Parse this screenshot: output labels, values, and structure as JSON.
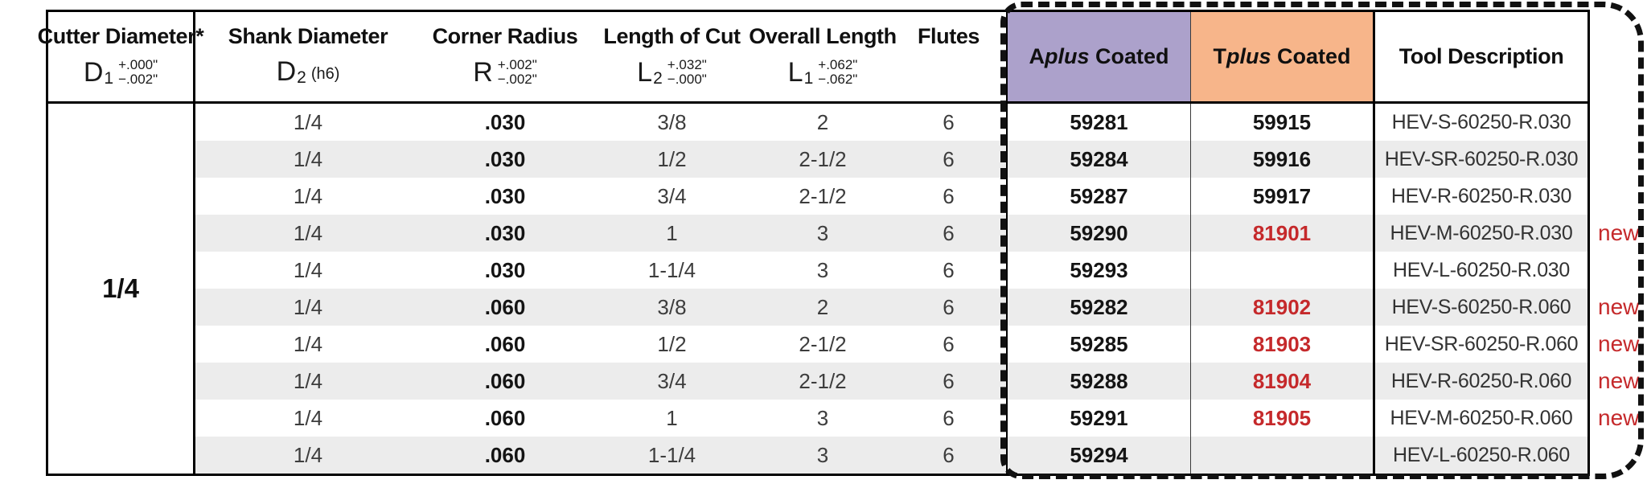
{
  "colors": {
    "aplus_bg": "#aca1cb",
    "tplus_bg": "#f7b58a",
    "new_color": "#c5292b",
    "row_stripe": "#ececec"
  },
  "header": {
    "cutter": {
      "label": "Cutter Diameter*",
      "symbol": "D",
      "subscript": "1",
      "tol_top": "+.000\"",
      "tol_bottom": "−.002\""
    },
    "shank": {
      "label": "Shank Diameter",
      "symbol": "D",
      "subscript": "2",
      "note": "(h6)"
    },
    "radius": {
      "label": "Corner Radius",
      "symbol": "R",
      "tol_top": "+.002\"",
      "tol_bottom": "−.002\""
    },
    "loc": {
      "label": "Length of Cut",
      "symbol": "L",
      "subscript": "2",
      "tol_top": "+.032\"",
      "tol_bottom": "−.000\""
    },
    "oal": {
      "label": "Overall Length",
      "symbol": "L",
      "subscript": "1",
      "tol_top": "+.062\"",
      "tol_bottom": "−.062\""
    },
    "flutes": {
      "label": "Flutes"
    },
    "aplus": {
      "prefix": "A",
      "italic": "plus",
      "suffix": " Coated"
    },
    "tplus": {
      "prefix": "T",
      "italic": "plus",
      "suffix": " Coated"
    },
    "desc": {
      "label": "Tool Description"
    }
  },
  "cutter_diameter": "1/4",
  "rows": [
    {
      "shank": "1/4",
      "radius": ".030",
      "loc": "3/8",
      "oal": "2",
      "flutes": "6",
      "aplus": "59281",
      "tplus": "59915",
      "tplus_red": false,
      "desc": "HEV-S-60250-R.030",
      "new_label": ""
    },
    {
      "shank": "1/4",
      "radius": ".030",
      "loc": "1/2",
      "oal": "2-1/2",
      "flutes": "6",
      "aplus": "59284",
      "tplus": "59916",
      "tplus_red": false,
      "desc": "HEV-SR-60250-R.030",
      "new_label": ""
    },
    {
      "shank": "1/4",
      "radius": ".030",
      "loc": "3/4",
      "oal": "2-1/2",
      "flutes": "6",
      "aplus": "59287",
      "tplus": "59917",
      "tplus_red": false,
      "desc": "HEV-R-60250-R.030",
      "new_label": ""
    },
    {
      "shank": "1/4",
      "radius": ".030",
      "loc": "1",
      "oal": "3",
      "flutes": "6",
      "aplus": "59290",
      "tplus": "81901",
      "tplus_red": true,
      "desc": "HEV-M-60250-R.030",
      "new_label": "new"
    },
    {
      "shank": "1/4",
      "radius": ".030",
      "loc": "1-1/4",
      "oal": "3",
      "flutes": "6",
      "aplus": "59293",
      "tplus": "",
      "tplus_red": false,
      "desc": "HEV-L-60250-R.030",
      "new_label": ""
    },
    {
      "shank": "1/4",
      "radius": ".060",
      "loc": "3/8",
      "oal": "2",
      "flutes": "6",
      "aplus": "59282",
      "tplus": "81902",
      "tplus_red": true,
      "desc": "HEV-S-60250-R.060",
      "new_label": "new"
    },
    {
      "shank": "1/4",
      "radius": ".060",
      "loc": "1/2",
      "oal": "2-1/2",
      "flutes": "6",
      "aplus": "59285",
      "tplus": "81903",
      "tplus_red": true,
      "desc": "HEV-SR-60250-R.060",
      "new_label": "new"
    },
    {
      "shank": "1/4",
      "radius": ".060",
      "loc": "3/4",
      "oal": "2-1/2",
      "flutes": "6",
      "aplus": "59288",
      "tplus": "81904",
      "tplus_red": true,
      "desc": "HEV-R-60250-R.060",
      "new_label": "new"
    },
    {
      "shank": "1/4",
      "radius": ".060",
      "loc": "1",
      "oal": "3",
      "flutes": "6",
      "aplus": "59291",
      "tplus": "81905",
      "tplus_red": true,
      "desc": "HEV-M-60250-R.060",
      "new_label": "new"
    },
    {
      "shank": "1/4",
      "radius": ".060",
      "loc": "1-1/4",
      "oal": "3",
      "flutes": "6",
      "aplus": "59294",
      "tplus": "",
      "tplus_red": false,
      "desc": "HEV-L-60250-R.060",
      "new_label": ""
    }
  ]
}
